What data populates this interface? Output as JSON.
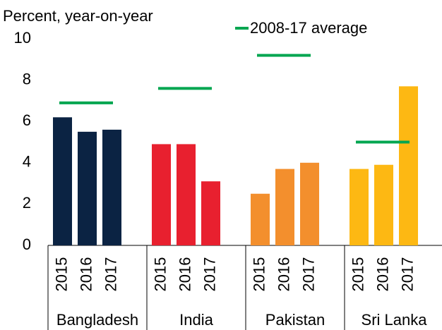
{
  "chart_data": {
    "type": "bar",
    "title": "Percent, year-on-year",
    "ylim": [
      0,
      10
    ],
    "yticks": [
      0,
      2,
      4,
      6,
      8,
      10
    ],
    "categories": [
      "2015",
      "2016",
      "2017"
    ],
    "groups": [
      {
        "name": "Bangladesh",
        "color": "#0b2343",
        "values": [
          6.2,
          5.5,
          5.6
        ],
        "average": 6.9
      },
      {
        "name": "India",
        "color": "#e8202f",
        "values": [
          4.9,
          4.9,
          3.1
        ],
        "average": 7.6
      },
      {
        "name": "Pakistan",
        "color": "#f38f2d",
        "values": [
          2.5,
          3.7,
          4.0
        ],
        "average": 9.2
      },
      {
        "name": "Sri Lanka",
        "color": "#fdb813",
        "values": [
          3.7,
          3.9,
          7.7
        ],
        "average": 5.0
      }
    ],
    "average_legend": {
      "name": "2008-17 average",
      "color": "#00a650"
    }
  }
}
